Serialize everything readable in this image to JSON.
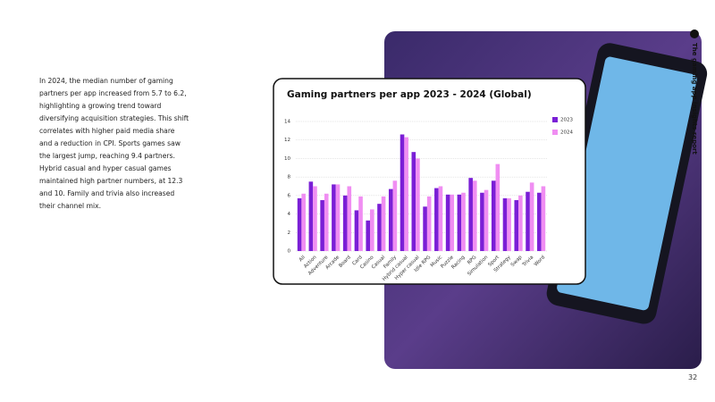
{
  "side_title": "The gaming app insights report",
  "page_number": "32",
  "body_text": "In 2024, the median number of gaming partners per app increased from 5.7 to 6.2, highlighting a growing trend toward diversifying acquisition strategies. This shift correlates with higher paid media share and a reduction in CPI. Sports games saw the largest jump, reaching 9.4 partners. Hybrid casual and hyper casual games maintained high partner numbers, at 12.3 and 10. Family and trivia also increased their channel mix.",
  "chart_data": {
    "type": "bar",
    "title": "Gaming partners per app 2023 - 2024 (Global)",
    "categories": [
      "All",
      "Action",
      "Adventure",
      "Arcade",
      "Board",
      "Card",
      "Casino",
      "Casual",
      "Family",
      "Hybrid casual",
      "Hyper casual",
      "Idle RPG",
      "Music",
      "Puzzle",
      "Racing",
      "RPG",
      "Simulation",
      "Sport",
      "Strategy",
      "Swap",
      "Trivia",
      "Word"
    ],
    "series": [
      {
        "name": "2023",
        "color": "#7a1fd6",
        "values": [
          5.7,
          7.5,
          5.5,
          7.2,
          6.0,
          4.4,
          3.3,
          5.1,
          6.7,
          12.6,
          10.7,
          4.8,
          6.8,
          6.1,
          6.1,
          7.9,
          6.3,
          7.6,
          5.7,
          5.5,
          6.4,
          6.3
        ]
      },
      {
        "name": "2024",
        "color": "#f08ef2",
        "values": [
          6.2,
          7.0,
          6.2,
          7.2,
          7.0,
          5.9,
          4.5,
          5.9,
          7.6,
          12.3,
          10.0,
          5.9,
          7.0,
          6.1,
          6.3,
          7.6,
          6.6,
          9.4,
          5.7,
          6.0,
          7.4,
          7.0
        ]
      }
    ],
    "ylim": [
      0,
      14
    ],
    "yticks": [
      0,
      2,
      4,
      6,
      8,
      10,
      12,
      14
    ],
    "grid": true,
    "legend": "right"
  }
}
